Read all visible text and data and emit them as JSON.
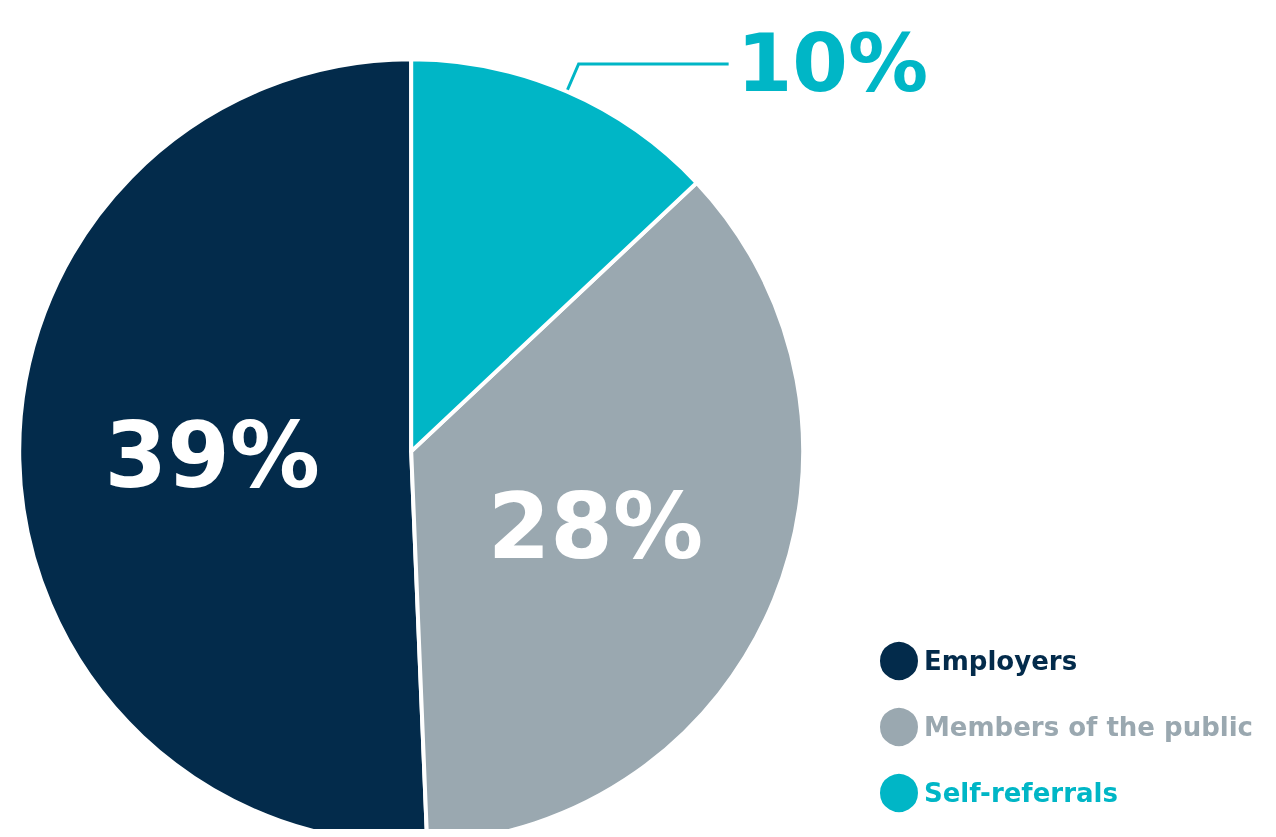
{
  "chart_data": {
    "type": "pie",
    "categories": [
      "Employers",
      "Members of the public",
      "Self-referrals"
    ],
    "values": [
      39,
      28,
      10
    ],
    "colors": [
      "#032b4b",
      "#9aa8b0",
      "#00b6c6"
    ],
    "value_labels": [
      "39%",
      "28%",
      "10%"
    ],
    "legend": "bottom right"
  }
}
